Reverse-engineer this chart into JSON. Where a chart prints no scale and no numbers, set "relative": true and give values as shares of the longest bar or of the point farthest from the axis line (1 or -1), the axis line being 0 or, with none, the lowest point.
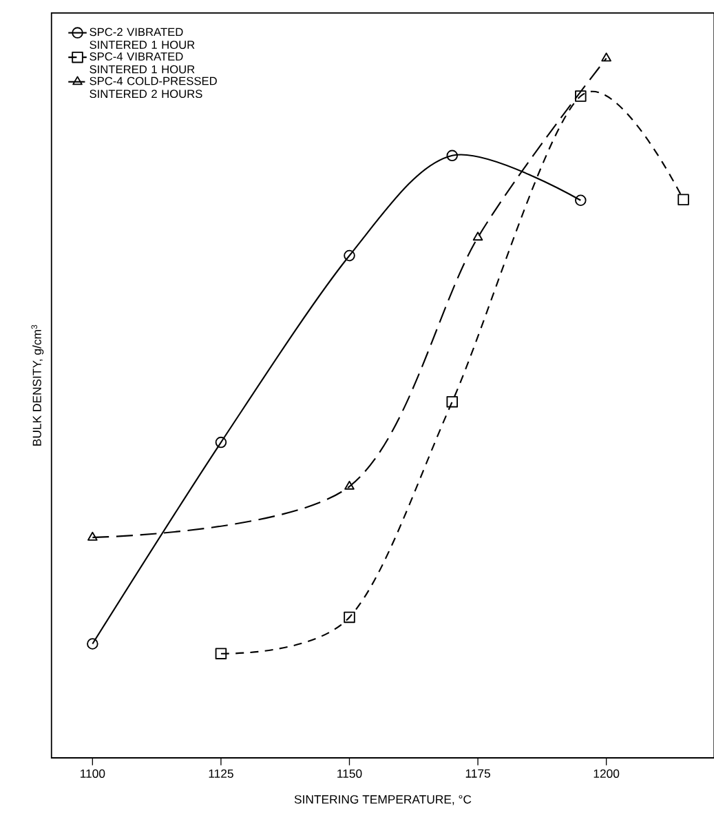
{
  "chart_data": {
    "type": "line",
    "relative": true,
    "xlabel": "SINTERING TEMPERATURE, °C",
    "ylabel": "BULK DENSITY, g/cm$^{3}$",
    "xlim": [
      1092,
      1221
    ],
    "xticks": [
      1100,
      1125,
      1150,
      1175,
      1200
    ],
    "legend": "top left",
    "grid": false,
    "series": [
      {
        "name": "SPC-2 VIBRATED SINTERED 1 HOUR",
        "color": "#000000",
        "marker": "circle",
        "line_style": "solid",
        "x": [
          1100,
          1125,
          1150,
          1170,
          1195
        ],
        "values": [
          0.163,
          0.451,
          0.718,
          0.861,
          0.797
        ]
      },
      {
        "name": "SPC-4 VIBRATED SINTERED 1 HOUR",
        "color": "#000000",
        "marker": "square",
        "line_style": "dashed",
        "x": [
          1125,
          1150,
          1170,
          1195,
          1215
        ],
        "values": [
          0.149,
          0.201,
          0.509,
          0.946,
          0.798
        ]
      },
      {
        "name": "SPC-4 COLD-PRESSED SINTERED 2 HOURS",
        "color": "#000000",
        "marker": "triangle",
        "line_style": "dashed",
        "x": [
          1100,
          1150,
          1175,
          1200
        ],
        "values": [
          0.315,
          0.388,
          0.744,
          1.0
        ]
      }
    ]
  }
}
